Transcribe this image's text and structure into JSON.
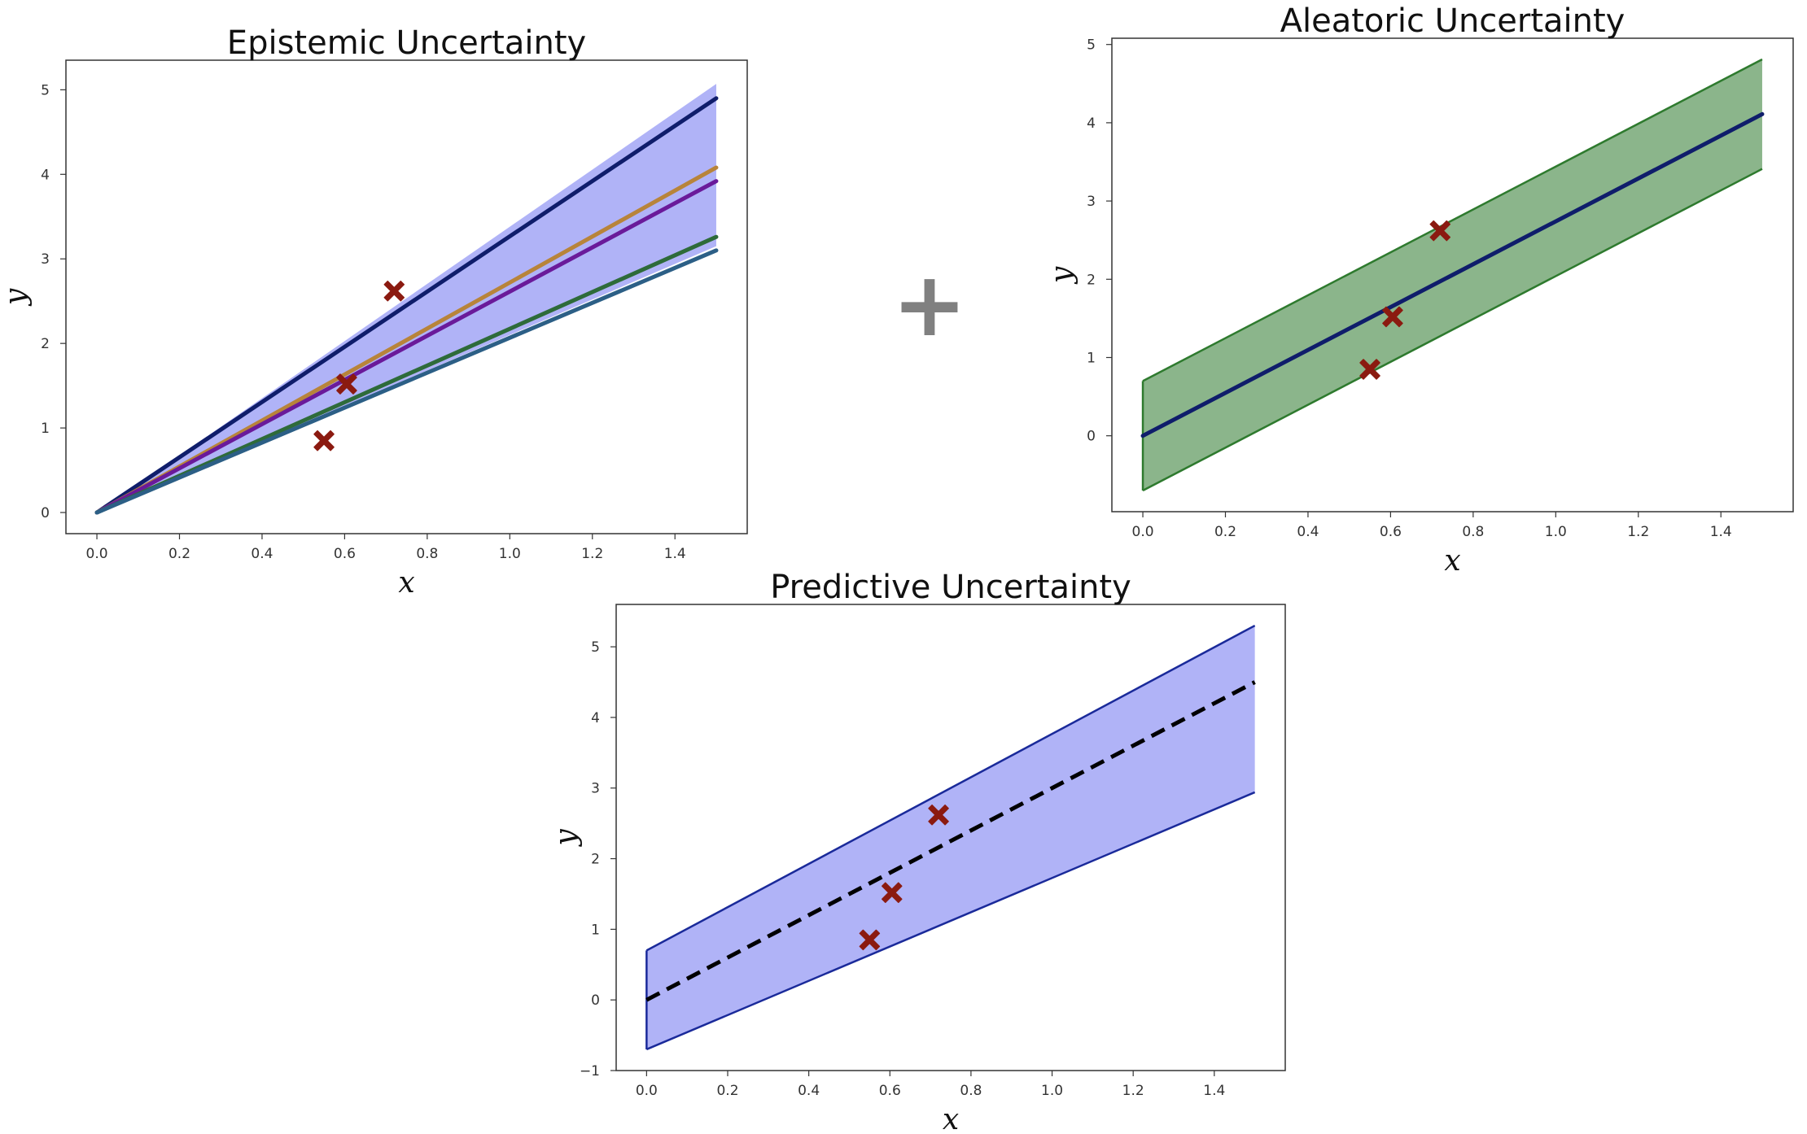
{
  "operator": "+",
  "chart_data": [
    {
      "type": "line",
      "title": "Epistemic Uncertainty",
      "xlabel": "x",
      "ylabel": "y",
      "xlim": [
        -0.075,
        1.575
      ],
      "ylim": [
        -0.25,
        5.35
      ],
      "xticks": [
        0.0,
        0.2,
        0.4,
        0.6,
        0.8,
        1.0,
        1.2,
        1.4
      ],
      "xtick_labels": [
        "0.0",
        "0.2",
        "0.4",
        "0.6",
        "0.8",
        "1.0",
        "1.2",
        "1.4"
      ],
      "yticks": [
        0,
        1,
        2,
        3,
        4,
        5
      ],
      "ytick_labels": [
        "0",
        "1",
        "2",
        "3",
        "4",
        "5"
      ],
      "band": {
        "x": [
          0,
          1.5
        ],
        "lower": [
          0,
          3.15
        ],
        "upper": [
          0,
          5.07
        ],
        "color": "#b0b3f7"
      },
      "series": [
        {
          "x": [
            0,
            1.5
          ],
          "y": [
            0,
            4.9
          ],
          "color": "#0f1d6b"
        },
        {
          "x": [
            0,
            1.5
          ],
          "y": [
            0,
            4.08
          ],
          "color": "#b8843a"
        },
        {
          "x": [
            0,
            1.5
          ],
          "y": [
            0,
            3.92
          ],
          "color": "#6a1a9a"
        },
        {
          "x": [
            0,
            1.5
          ],
          "y": [
            0,
            3.26
          ],
          "color": "#2e6b3a"
        },
        {
          "x": [
            0,
            1.5
          ],
          "y": [
            0,
            3.1
          ],
          "color": "#2c5f86"
        }
      ],
      "points": {
        "x": [
          0.55,
          0.605,
          0.72
        ],
        "y": [
          0.85,
          1.52,
          2.62
        ],
        "color": "#8b1a10",
        "marker": "X"
      }
    },
    {
      "type": "line",
      "title": "Aleatoric Uncertainty",
      "xlabel": "x",
      "ylabel": "y",
      "xlim": [
        -0.075,
        1.575
      ],
      "ylim": [
        -0.97,
        5.08
      ],
      "xticks": [
        0.0,
        0.2,
        0.4,
        0.6,
        0.8,
        1.0,
        1.2,
        1.4
      ],
      "xtick_labels": [
        "0.0",
        "0.2",
        "0.4",
        "0.6",
        "0.8",
        "1.0",
        "1.2",
        "1.4"
      ],
      "yticks": [
        0,
        1,
        2,
        3,
        4,
        5
      ],
      "ytick_labels": [
        "0",
        "1",
        "2",
        "3",
        "4",
        "5"
      ],
      "band": {
        "x": [
          0,
          1.5
        ],
        "lower": [
          -0.7,
          3.41
        ],
        "upper": [
          0.7,
          4.81
        ],
        "color": "#8bb58b",
        "edge": "#2e7a2e"
      },
      "series": [
        {
          "x": [
            0,
            1.5
          ],
          "y": [
            0,
            4.11
          ],
          "color": "#0f1d6b"
        }
      ],
      "points": {
        "x": [
          0.55,
          0.605,
          0.72
        ],
        "y": [
          0.85,
          1.52,
          2.62
        ],
        "color": "#8b1a10",
        "marker": "X"
      }
    },
    {
      "type": "line",
      "title": "Predictive Uncertainty",
      "xlabel": "x",
      "ylabel": "y",
      "xlim": [
        -0.075,
        1.575
      ],
      "ylim": [
        -1.0,
        5.6
      ],
      "xticks": [
        0.0,
        0.2,
        0.4,
        0.6,
        0.8,
        1.0,
        1.2,
        1.4
      ],
      "xtick_labels": [
        "0.0",
        "0.2",
        "0.4",
        "0.6",
        "0.8",
        "1.0",
        "1.2",
        "1.4"
      ],
      "yticks": [
        -1,
        0,
        1,
        2,
        3,
        4,
        5
      ],
      "ytick_labels": [
        "−1",
        "0",
        "1",
        "2",
        "3",
        "4",
        "5"
      ],
      "band": {
        "x": [
          0,
          1.5
        ],
        "lower": [
          -0.7,
          2.94
        ],
        "upper": [
          0.7,
          5.3
        ],
        "color": "#b0b3f7",
        "edge": "#1a2a9a"
      },
      "series": [
        {
          "x": [
            0,
            1.5
          ],
          "y": [
            0,
            4.5
          ],
          "color": "#000000",
          "dash": true
        }
      ],
      "points": {
        "x": [
          0.55,
          0.605,
          0.72
        ],
        "y": [
          0.85,
          1.52,
          2.62
        ],
        "color": "#8b1a10",
        "marker": "X"
      }
    }
  ]
}
